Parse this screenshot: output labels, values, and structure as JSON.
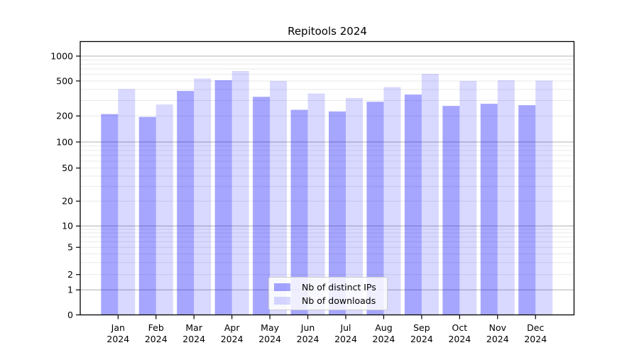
{
  "chart_data": {
    "type": "bar",
    "title": "Repitools 2024",
    "categories": [
      "Jan",
      "Feb",
      "Mar",
      "Apr",
      "May",
      "Jun",
      "Jul",
      "Aug",
      "Sep",
      "Oct",
      "Nov",
      "Dec"
    ],
    "category_year": "2024",
    "series": [
      {
        "name": "Nb of distinct IPs",
        "color": "rgba(0,0,255,0.35)",
        "values": [
          210,
          195,
          385,
          510,
          330,
          235,
          225,
          290,
          350,
          260,
          275,
          265
        ]
      },
      {
        "name": "Nb of downloads",
        "color": "rgba(0,0,255,0.15)",
        "values": [
          405,
          270,
          535,
          660,
          500,
          360,
          320,
          425,
          610,
          500,
          510,
          505
        ]
      }
    ],
    "xlabel": "",
    "ylabel": "",
    "yscale": "symlog",
    "y_ticks": [
      0,
      1,
      2,
      5,
      10,
      20,
      50,
      100,
      200,
      500,
      1000
    ],
    "ylim": [
      0,
      1500
    ],
    "grid": "both",
    "legend_position": "lower center",
    "colors": {
      "major_grid": "#b0b0b0",
      "minor_grid": "#e9e9e9",
      "axis": "#000000",
      "text": "#000000"
    }
  }
}
